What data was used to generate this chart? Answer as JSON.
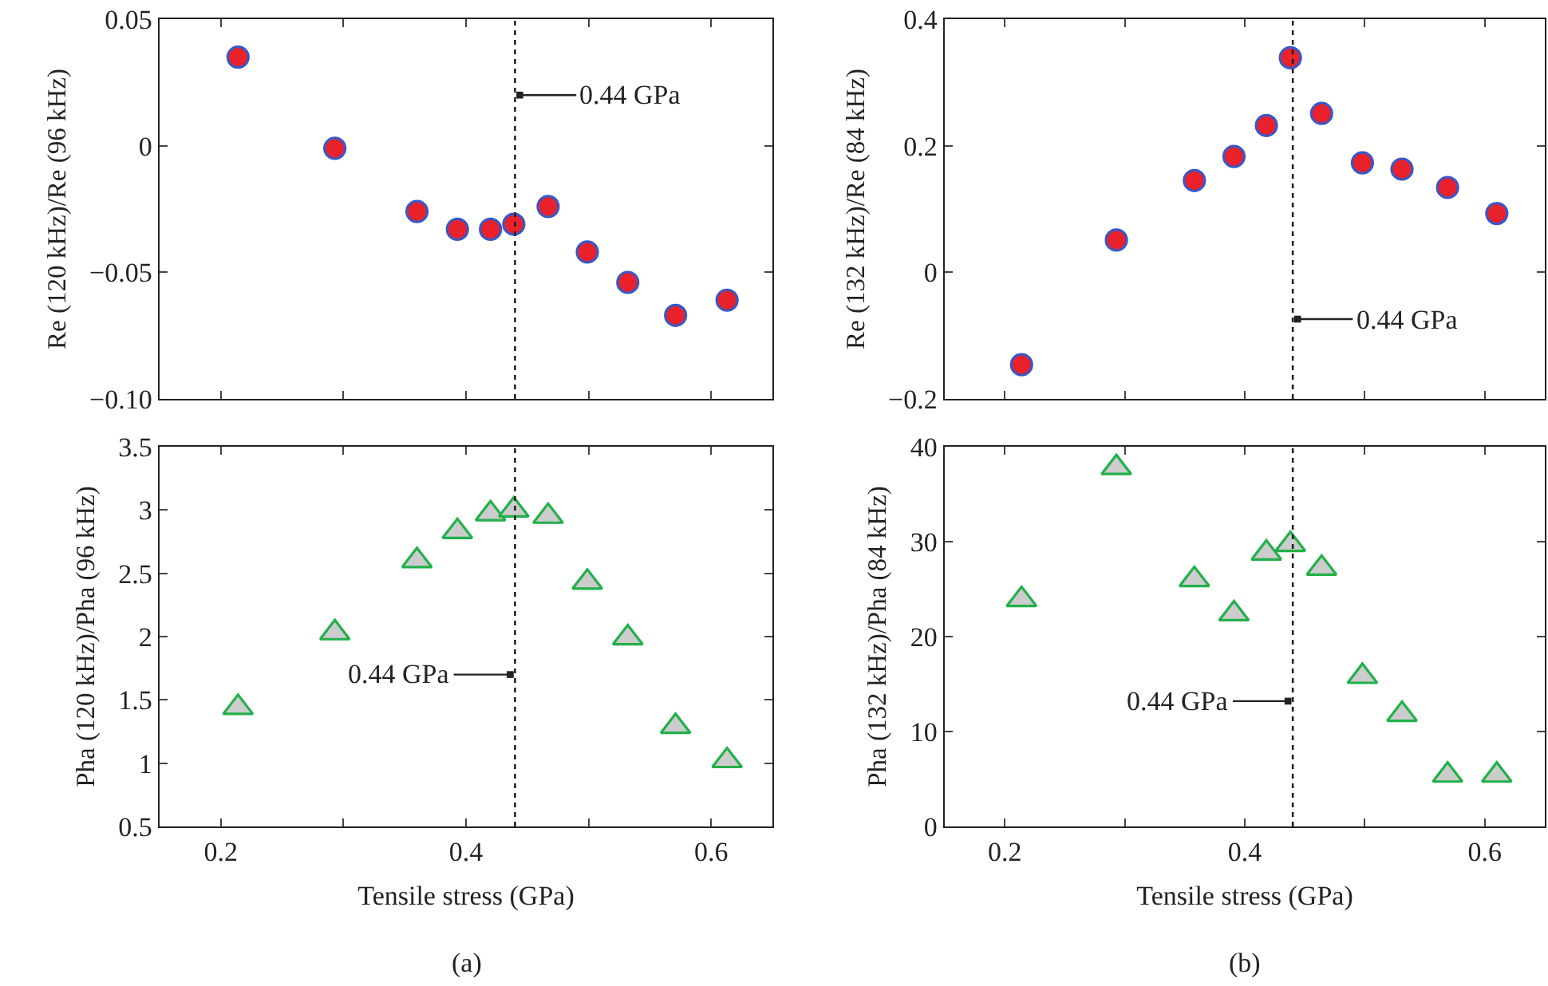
{
  "chart_data": [
    {
      "type": "scatter",
      "ylabel": "Re (120 kHz)/Re (96 kHz)",
      "marker": "circle",
      "tick_labels": "y",
      "x": [
        0.214,
        0.293,
        0.36,
        0.393,
        0.42,
        0.439,
        0.467,
        0.499,
        0.532,
        0.571,
        0.613
      ],
      "series": [
        {
          "color": "#e8212b",
          "values": [
            0.035,
            -0.001,
            -0.026,
            -0.033,
            -0.033,
            -0.031,
            -0.024,
            -0.042,
            -0.054,
            -0.067,
            -0.061
          ]
        }
      ],
      "xlim": [
        0.15,
        0.65
      ],
      "xticks": [
        {
          "value": 0.2,
          "label": null
        },
        {
          "value": 0.3,
          "label": null
        },
        {
          "value": 0.4,
          "label": null
        },
        {
          "value": 0.5,
          "label": null
        },
        {
          "value": 0.6,
          "label": null
        }
      ],
      "ylim": [
        -0.1,
        0.05
      ],
      "yticks": [
        {
          "value": -0.1,
          "label": "−0.10"
        },
        {
          "value": -0.05,
          "label": "−0.05"
        },
        0,
        0.05
      ],
      "ref_lines": [
        {
          "axis": "x",
          "value": 0.44,
          "line_style": "dotted",
          "label": "0.44 GPa"
        }
      ]
    },
    {
      "type": "scatter",
      "ylabel": "Re (132 kHz)/Re (84 kHz)",
      "marker": "circle",
      "tick_labels": "y",
      "x": [
        0.214,
        0.293,
        0.358,
        0.391,
        0.418,
        0.438,
        0.464,
        0.498,
        0.531,
        0.569,
        0.61
      ],
      "series": [
        {
          "color": "#e8212b",
          "values": [
            -0.146,
            0.051,
            0.145,
            0.183,
            0.232,
            0.339,
            0.251,
            0.173,
            0.163,
            0.134,
            0.093
          ]
        }
      ],
      "xlim": [
        0.15,
        0.65
      ],
      "xticks": [
        {
          "value": 0.2,
          "label": null
        },
        {
          "value": 0.3,
          "label": null
        },
        {
          "value": 0.4,
          "label": null
        },
        {
          "value": 0.5,
          "label": null
        },
        {
          "value": 0.6,
          "label": null
        }
      ],
      "ylim": [
        -0.2,
        0.4
      ],
      "yticks": [
        {
          "value": -0.2,
          "label": "−0.2"
        },
        0,
        0.2,
        0.4
      ],
      "ref_lines": [
        {
          "axis": "x",
          "value": 0.44,
          "line_style": "dotted",
          "label": "0.44 GPa"
        }
      ]
    },
    {
      "type": "scatter",
      "xlabel": "Tensile stress (GPa)",
      "ylabel": "Pha (120 kHz)/Pha (96 kHz)",
      "marker": "triangle",
      "x": [
        0.214,
        0.293,
        0.36,
        0.393,
        0.42,
        0.439,
        0.467,
        0.499,
        0.532,
        0.571,
        0.613
      ],
      "series": [
        {
          "color": "#cccccc",
          "values": [
            1.44,
            2.03,
            2.6,
            2.83,
            2.97,
            3.0,
            2.95,
            2.43,
            1.99,
            1.29,
            1.02
          ]
        }
      ],
      "xlim": [
        0.15,
        0.65
      ],
      "xticks": [
        0.2,
        {
          "value": 0.3,
          "label": null
        },
        0.4,
        {
          "value": 0.5,
          "label": null
        },
        0.6
      ],
      "ylim": [
        0.5,
        3.5
      ],
      "yticks": [
        0.5,
        1,
        1.5,
        2,
        2.5,
        3,
        3.5
      ],
      "ref_lines": [
        {
          "axis": "x",
          "value": 0.44,
          "line_style": "dotted",
          "label": "0.44 GPa"
        }
      ],
      "annotations": [
        "(a)"
      ]
    },
    {
      "type": "scatter",
      "xlabel": "Tensile stress (GPa)",
      "ylabel": "Pha (132 kHz)/Pha (84 kHz)",
      "marker": "triangle",
      "x": [
        0.214,
        0.293,
        0.358,
        0.391,
        0.418,
        0.438,
        0.464,
        0.498,
        0.531,
        0.569,
        0.61
      ],
      "series": [
        {
          "color": "#cccccc",
          "values": [
            23.9,
            37.8,
            26.0,
            22.4,
            28.8,
            29.7,
            27.2,
            15.8,
            11.8,
            5.4,
            5.4
          ]
        }
      ],
      "xlim": [
        0.15,
        0.65
      ],
      "xticks": [
        0.2,
        {
          "value": 0.3,
          "label": null
        },
        0.4,
        {
          "value": 0.5,
          "label": null
        },
        0.6
      ],
      "ylim": [
        0,
        40
      ],
      "yticks": [
        0,
        10,
        20,
        30,
        40
      ],
      "ref_lines": [
        {
          "axis": "x",
          "value": 0.44,
          "line_style": "dotted",
          "label": "0.44 GPa"
        }
      ],
      "annotations": [
        "(b)"
      ]
    }
  ]
}
